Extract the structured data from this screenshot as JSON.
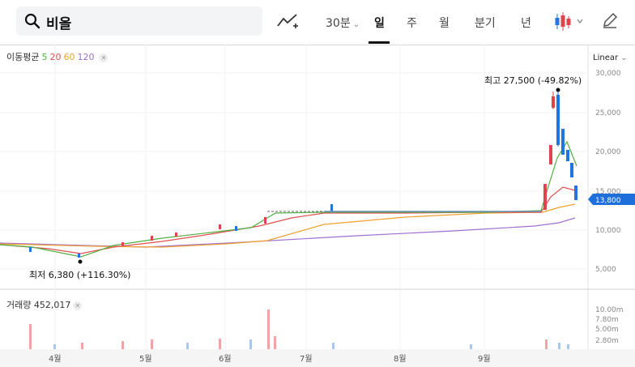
{
  "search": {
    "query": "비올"
  },
  "periods": [
    {
      "label": "30분",
      "active": false
    },
    {
      "label": "일",
      "active": true
    },
    {
      "label": "주",
      "active": false
    },
    {
      "label": "월",
      "active": false
    },
    {
      "label": "분기",
      "active": false
    },
    {
      "label": "년",
      "active": false
    }
  ],
  "moving_average": {
    "label": "이동평균",
    "periods": [
      {
        "label": "5",
        "color": "#52b043"
      },
      {
        "label": "20",
        "color": "#e05050"
      },
      {
        "label": "60",
        "color": "#f0a030"
      },
      {
        "label": "120",
        "color": "#a070d0"
      }
    ]
  },
  "scale_mode": "Linear",
  "volume_legend": {
    "label": "거래량",
    "value": "452,017"
  },
  "price_axis_labels": [
    "30,000",
    "25,000",
    "20,000",
    "15,000",
    "10,000",
    "5,000"
  ],
  "current_price_tag": "13,800",
  "volume_axis_labels": [
    "10.00m",
    "7.80m",
    "5.00m",
    "2.80m"
  ],
  "month_labels": [
    "4월",
    "5월",
    "6월",
    "7월",
    "8월",
    "9월"
  ],
  "annotations": {
    "high": "최고  27,500 (-49.82%)",
    "low": "최저  6,380 (+116.30%)"
  },
  "colors": {
    "up": "#e0434b",
    "down": "#1f76e0",
    "tag": "#1e6fdb"
  },
  "chart_data": {
    "type": "candlestick",
    "ylim": [
      0,
      30000
    ],
    "price_high": 27500,
    "price_low": 6380,
    "current_price": 13800,
    "month_ticks": [
      "4월",
      "5월",
      "6월",
      "7월",
      "8월",
      "9월"
    ],
    "price_ticks": [
      5000,
      10000,
      15000,
      20000,
      25000,
      30000
    ],
    "volume_ticks_millions": [
      2.8,
      5.0,
      7.8,
      10.0
    ],
    "volume_current": 452017
  }
}
